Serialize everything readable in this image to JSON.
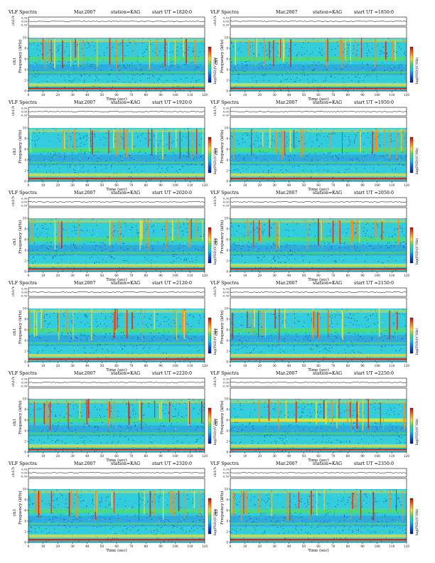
{
  "page": {
    "background": "#ffffff"
  },
  "panels": [
    {
      "title": "VLF Spectra",
      "date": "Mar.2007",
      "station": "station=KAG",
      "start": "start UT =1820:0"
    },
    {
      "title": "VLF Spectra",
      "date": "Mar.2007",
      "station": "station=KAG",
      "start": "start UT =1850:0"
    },
    {
      "title": "VLF Spectra",
      "date": "Mar.2007",
      "station": "station=KAG",
      "start": "start UT =1920:0"
    },
    {
      "title": "VLF Spectra",
      "date": "Mar.2007",
      "station": "station=KAG",
      "start": "start UT =1950:0"
    },
    {
      "title": "VLF Spectra",
      "date": "Mar.2007",
      "station": "station=KAG",
      "start": "start UT =2020:0"
    },
    {
      "title": "VLF Spectra",
      "date": "Mar.2007",
      "station": "station=KAG",
      "start": "start UT =2050:0"
    },
    {
      "title": "VLF Spectra",
      "date": "Mar.2007",
      "station": "station=KAG",
      "start": "start UT =2120:0"
    },
    {
      "title": "VLF Spectra",
      "date": "Mar.2007",
      "station": "station=KAG",
      "start": "start UT =2150:0"
    },
    {
      "title": "VLF Spectra",
      "date": "Mar.2007",
      "station": "station=KAG",
      "start": "start UT =2220:0"
    },
    {
      "title": "VLF Spectra",
      "date": "Mar.2007",
      "station": "station=KAG",
      "start": "start UT =2250:0"
    },
    {
      "title": "VLF Spectra",
      "date": "Mar.2007",
      "station": "station=KAG",
      "start": "start UT =2320:0"
    },
    {
      "title": "VLF Spectra",
      "date": "Mar.2007",
      "station": "station=KAG",
      "start": "start UT =2350:0"
    }
  ],
  "labels": {
    "amp_axis": "ch1(V)",
    "channel": "ch1",
    "freq_axis": "Frequency (kHz)",
    "time_axis": "Time (sec)",
    "colorbar": "log(PSD)(V²/Hz)"
  },
  "colors": {
    "background_mid": "#33ccdd",
    "background_low": "#2a8fd8",
    "band_green": "#55dd66",
    "band_yellow": "#e8e040",
    "band_red": "#dd2211",
    "speckle_dark": "#1a2a8a",
    "blank_top": "#ffffff"
  },
  "chart_data": {
    "type": "heatmap",
    "layout": "6 rows x 2 columns of spectrograms",
    "x": {
      "label": "Time (sec)",
      "range": [
        0,
        120
      ],
      "ticks": [
        0,
        10,
        20,
        30,
        40,
        50,
        60,
        70,
        80,
        90,
        100,
        110,
        120
      ]
    },
    "y": {
      "label": "Frequency (kHz)",
      "range": [
        0,
        12
      ],
      "ticks": [
        0,
        2,
        4,
        6,
        8,
        10
      ]
    },
    "amplitude_strip": {
      "label": "ch1(V)",
      "ticks": [
        "0.30",
        "0.00",
        "-0.30"
      ]
    },
    "colorbar": {
      "label": "log(PSD)(V²/Hz)",
      "colors": [
        "#001a88",
        "#0055ff",
        "#00c8ff",
        "#30e070",
        "#f0e030",
        "#ff7010",
        "#cc0000"
      ]
    },
    "data_cutoff_khz": 10,
    "features": [
      {
        "name": "narrowband line",
        "freq_khz": 0.5,
        "color": "red"
      },
      {
        "name": "band",
        "freq_khz": 1.2,
        "color": "yellow-green"
      },
      {
        "name": "band",
        "freq_khz": 3.5,
        "color": "green"
      },
      {
        "name": "band",
        "freq_khz": 6.0,
        "color": "green"
      },
      {
        "name": "sferics",
        "freq_khz_range": [
          5,
          10
        ],
        "color": "yellow-red vertical streaks"
      }
    ]
  }
}
